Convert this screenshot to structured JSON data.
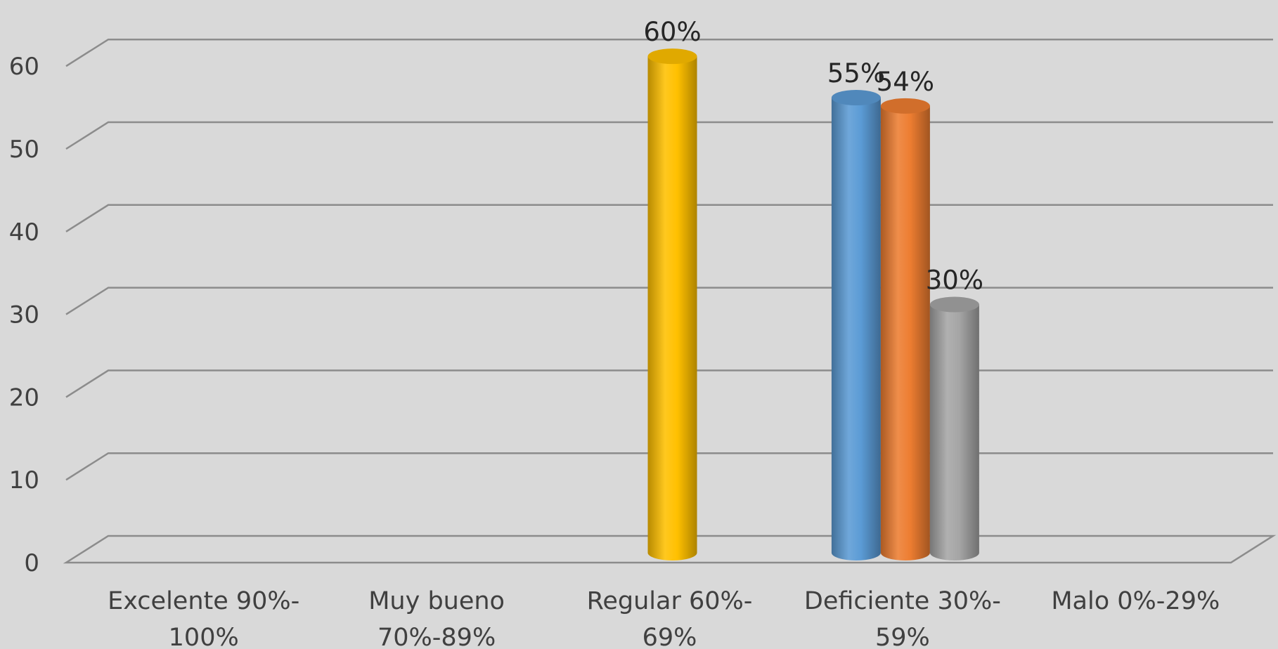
{
  "chart_data": {
    "type": "bar",
    "categories": [
      [
        "Excelente  90%-",
        "100%"
      ],
      [
        "Muy bueno",
        "70%-89%"
      ],
      [
        "Regular 60%-",
        "69%"
      ],
      [
        "Deficiente 30%-",
        "59%"
      ],
      [
        "Malo 0%-29%"
      ]
    ],
    "ylim": [
      0,
      60
    ],
    "yticks": [
      0,
      10,
      20,
      30,
      40,
      50,
      60
    ],
    "grid": true,
    "bars": [
      {
        "category_index": 2,
        "value": 60,
        "label": "60%",
        "color": "#ffc000"
      },
      {
        "category_index": 3,
        "value": 55,
        "label": "55%",
        "color": "#5b9bd5"
      },
      {
        "category_index": 3,
        "value": 54,
        "label": "54%",
        "color": "#ed7d31"
      },
      {
        "category_index": 3,
        "value": 30,
        "label": "30%",
        "color": "#a5a5a5"
      }
    ],
    "colors": {
      "background": "#d9d9d9",
      "grid": "#8c8c8c",
      "text": "#404040"
    }
  }
}
